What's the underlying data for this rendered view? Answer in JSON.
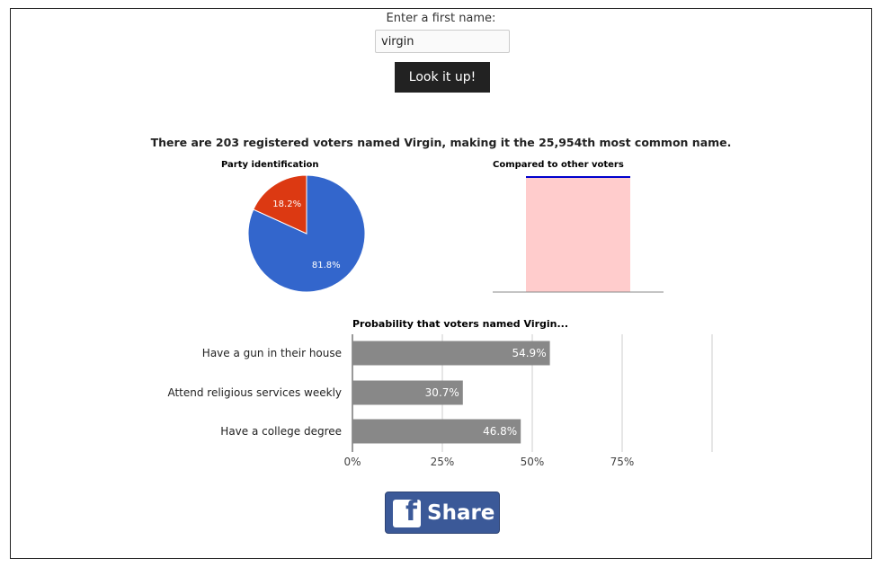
{
  "form": {
    "prompt": "Enter a first name:",
    "input_value": "virgin",
    "button_label": "Look it up!"
  },
  "headline": "There are 203 registered voters named Virgin, making it the 25,954th most common name.",
  "share": {
    "label": "Share",
    "icon": "facebook-icon",
    "color": "#3b5998"
  },
  "chart_data": [
    {
      "type": "pie",
      "title": "Party identification",
      "slices": [
        {
          "value": 81.8,
          "label": "81.8%",
          "color": "#3366cc"
        },
        {
          "value": 18.2,
          "label": "18.2%",
          "color": "#dc3912"
        }
      ]
    },
    {
      "type": "bar",
      "title": "Compared to other voters",
      "bar_color": "#ffcccc",
      "marker_color": "#0000cc",
      "axis_color": "#888888"
    },
    {
      "type": "bar",
      "orientation": "horizontal",
      "title": "Probability that voters named Virgin...",
      "categories": [
        "Have a gun in their house",
        "Attend religious services weekly",
        "Have a college degree"
      ],
      "values": [
        54.9,
        30.7,
        46.8
      ],
      "value_labels": [
        "54.9%",
        "30.7%",
        "46.8%"
      ],
      "xlim": [
        0,
        100
      ],
      "ticks": [
        {
          "value": 0,
          "label": "0%"
        },
        {
          "value": 25,
          "label": "25%"
        },
        {
          "value": 50,
          "label": "50%"
        },
        {
          "value": 75,
          "label": "75%"
        },
        {
          "value": 100,
          "label": ""
        }
      ],
      "bar_color": "#888888",
      "grid": true
    }
  ]
}
